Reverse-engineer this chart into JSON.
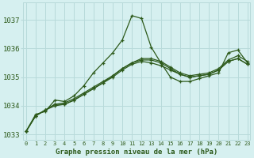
{
  "title": "Graphe pression niveau de la mer (hPa)",
  "background_color": "#d6f0f0",
  "grid_color": "#b8dada",
  "line_color": "#2d5a1b",
  "ylim": [
    1032.8,
    1037.6
  ],
  "yticks": [
    1033,
    1034,
    1035,
    1036,
    1037
  ],
  "xlim": [
    -0.3,
    23.3
  ],
  "series": [
    [
      1033.1,
      1033.7,
      1033.8,
      1034.2,
      1034.15,
      1034.35,
      1034.7,
      1035.15,
      1035.5,
      1035.85,
      1036.3,
      1037.15,
      1037.05,
      1036.05,
      1035.5,
      1035.0,
      1034.85,
      1034.85,
      1034.95,
      1035.05,
      1035.15,
      1035.85,
      1035.95,
      1035.5
    ],
    [
      1033.1,
      1033.65,
      1033.85,
      1034.05,
      1034.05,
      1034.2,
      1034.4,
      1034.6,
      1034.8,
      1035.0,
      1035.25,
      1035.45,
      1035.55,
      1035.5,
      1035.4,
      1035.25,
      1035.1,
      1035.0,
      1035.05,
      1035.1,
      1035.25,
      1035.55,
      1035.65,
      1035.45
    ],
    [
      1033.1,
      1033.65,
      1033.85,
      1034.05,
      1034.1,
      1034.25,
      1034.45,
      1034.65,
      1034.85,
      1035.05,
      1035.3,
      1035.5,
      1035.65,
      1035.65,
      1035.55,
      1035.35,
      1035.15,
      1035.05,
      1035.1,
      1035.15,
      1035.3,
      1035.6,
      1035.75,
      1035.55
    ],
    [
      1033.1,
      1033.65,
      1033.85,
      1034.0,
      1034.05,
      1034.2,
      1034.4,
      1034.6,
      1034.8,
      1035.05,
      1035.3,
      1035.5,
      1035.6,
      1035.6,
      1035.5,
      1035.3,
      1035.1,
      1035.0,
      1035.05,
      1035.1,
      1035.25,
      1035.55,
      1035.65,
      1035.45
    ]
  ]
}
